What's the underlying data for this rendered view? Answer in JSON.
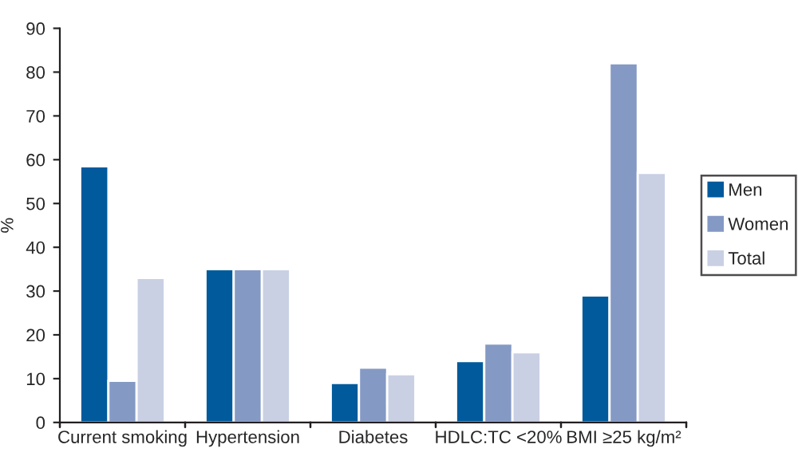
{
  "chart_data": {
    "type": "bar",
    "ylabel": "%",
    "categories": [
      "Current smoking",
      "Hypertension",
      "Diabetes",
      "HDLC:TC <20%",
      "BMI ≥25 kg/m²"
    ],
    "series": [
      {
        "name": "Men",
        "color": "#005a9c",
        "values": [
          58.5,
          35,
          9,
          14,
          29
        ]
      },
      {
        "name": "Women",
        "color": "#8499c4",
        "values": [
          9.5,
          35,
          12.5,
          18,
          82
        ]
      },
      {
        "name": "Total",
        "color": "#c9d0e4",
        "values": [
          33,
          35,
          11,
          16,
          57
        ]
      }
    ],
    "ylim": [
      0,
      90
    ],
    "yticks": [
      0,
      10,
      20,
      30,
      40,
      50,
      60,
      70,
      80,
      90
    ],
    "grid": false,
    "legend": "right"
  }
}
